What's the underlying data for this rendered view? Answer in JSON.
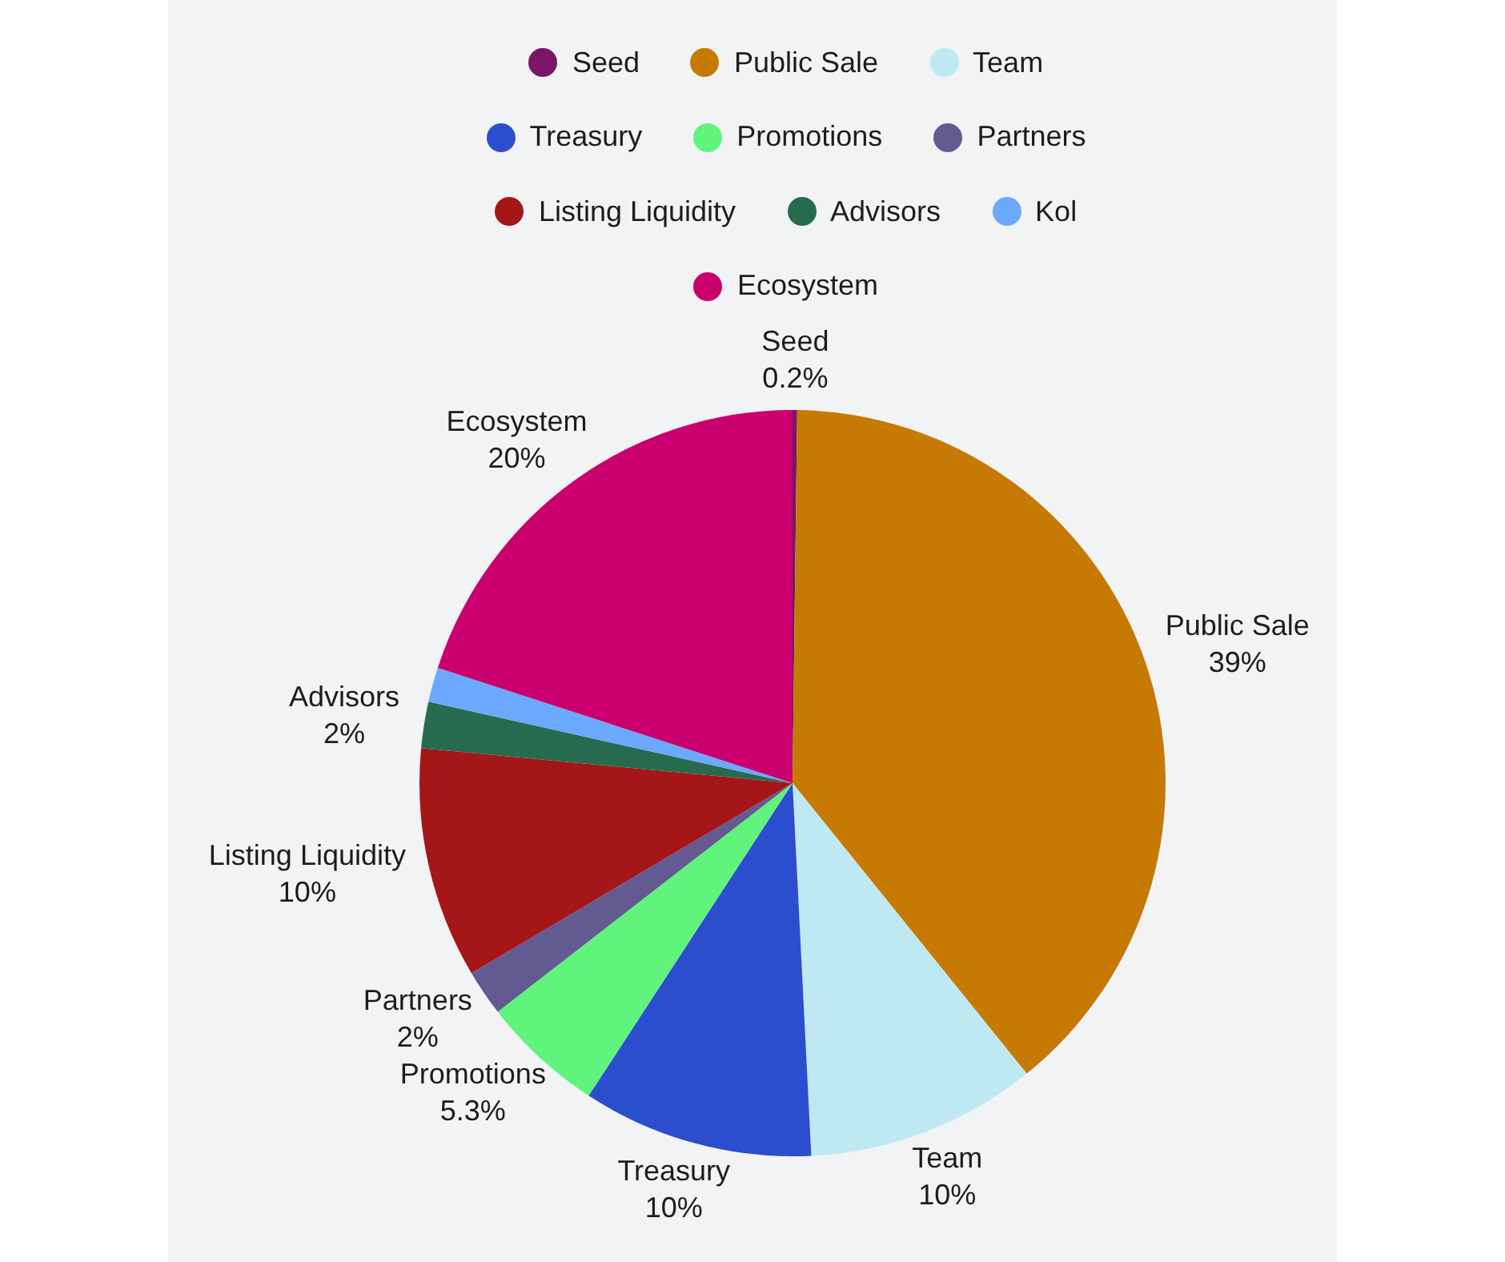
{
  "chart_data": {
    "type": "pie",
    "categories": [
      "Seed",
      "Public Sale",
      "Team",
      "Treasury",
      "Promotions",
      "Partners",
      "Listing Liquidity",
      "Advisors",
      "Kol",
      "Ecosystem"
    ],
    "values": [
      0.2,
      39,
      10,
      10,
      5.3,
      2,
      10,
      2,
      1.5,
      20
    ],
    "colors": [
      "#7b1565",
      "#c67a04",
      "#bee9f2",
      "#2b4ecf",
      "#60f47c",
      "#635a91",
      "#a51618",
      "#276b4f",
      "#6aa9fe",
      "#c9006e"
    ],
    "value_labels": [
      "0.2%",
      "39%",
      "10%",
      "10%",
      "5.3%",
      "2%",
      "10%",
      "2%",
      null,
      "20%"
    ],
    "legend": "top"
  }
}
